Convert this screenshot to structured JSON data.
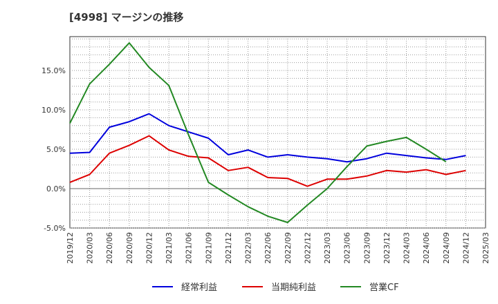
{
  "chart_data": {
    "type": "line",
    "title": "[4998]  マージンの推移",
    "x": [
      "2019/12",
      "2020/03",
      "2020/06",
      "2020/09",
      "2020/12",
      "2021/03",
      "2021/06",
      "2021/09",
      "2021/12",
      "2022/03",
      "2022/06",
      "2022/09",
      "2022/12",
      "2023/03",
      "2023/06",
      "2023/09",
      "2023/12",
      "2024/03",
      "2024/06",
      "2024/09",
      "2024/12"
    ],
    "x_ticks": [
      "2019/12",
      "2020/03",
      "2020/06",
      "2020/09",
      "2020/12",
      "2021/03",
      "2021/06",
      "2021/09",
      "2021/12",
      "2022/03",
      "2022/06",
      "2022/09",
      "2022/12",
      "2023/03",
      "2023/06",
      "2023/09",
      "2023/12",
      "2024/03",
      "2024/06",
      "2024/09",
      "2024/12",
      "2025/03"
    ],
    "y_ticks": [
      "-5.0%",
      "0.0%",
      "5.0%",
      "10.0%",
      "15.0%"
    ],
    "y_tick_values": [
      -5,
      0,
      5,
      10,
      15
    ],
    "ylim": [
      -5,
      19.3
    ],
    "grid": true,
    "legend_position": "bottom",
    "series": [
      {
        "name": "経常利益",
        "color": "#0000dd",
        "values": [
          4.5,
          4.6,
          7.8,
          8.5,
          9.5,
          8.0,
          7.2,
          6.4,
          4.3,
          4.9,
          4.0,
          4.3,
          4.0,
          3.8,
          3.4,
          3.8,
          4.5,
          4.2,
          3.9,
          3.7,
          4.2
        ]
      },
      {
        "name": "当期純利益",
        "color": "#dd0000",
        "values": [
          0.8,
          1.8,
          4.5,
          5.5,
          6.7,
          4.9,
          4.1,
          3.9,
          2.3,
          2.7,
          1.4,
          1.3,
          0.3,
          1.2,
          1.2,
          1.6,
          2.3,
          2.1,
          2.4,
          1.8,
          2.3
        ]
      },
      {
        "name": "営業CF",
        "color": "#228822",
        "values": [
          8.3,
          13.3,
          15.8,
          18.5,
          15.4,
          13.1,
          6.8,
          0.8,
          -0.8,
          -2.3,
          -3.5,
          -4.3,
          -2.1,
          0.0,
          2.8,
          5.4,
          6.0,
          6.5,
          5.0,
          3.4,
          null
        ]
      }
    ]
  }
}
